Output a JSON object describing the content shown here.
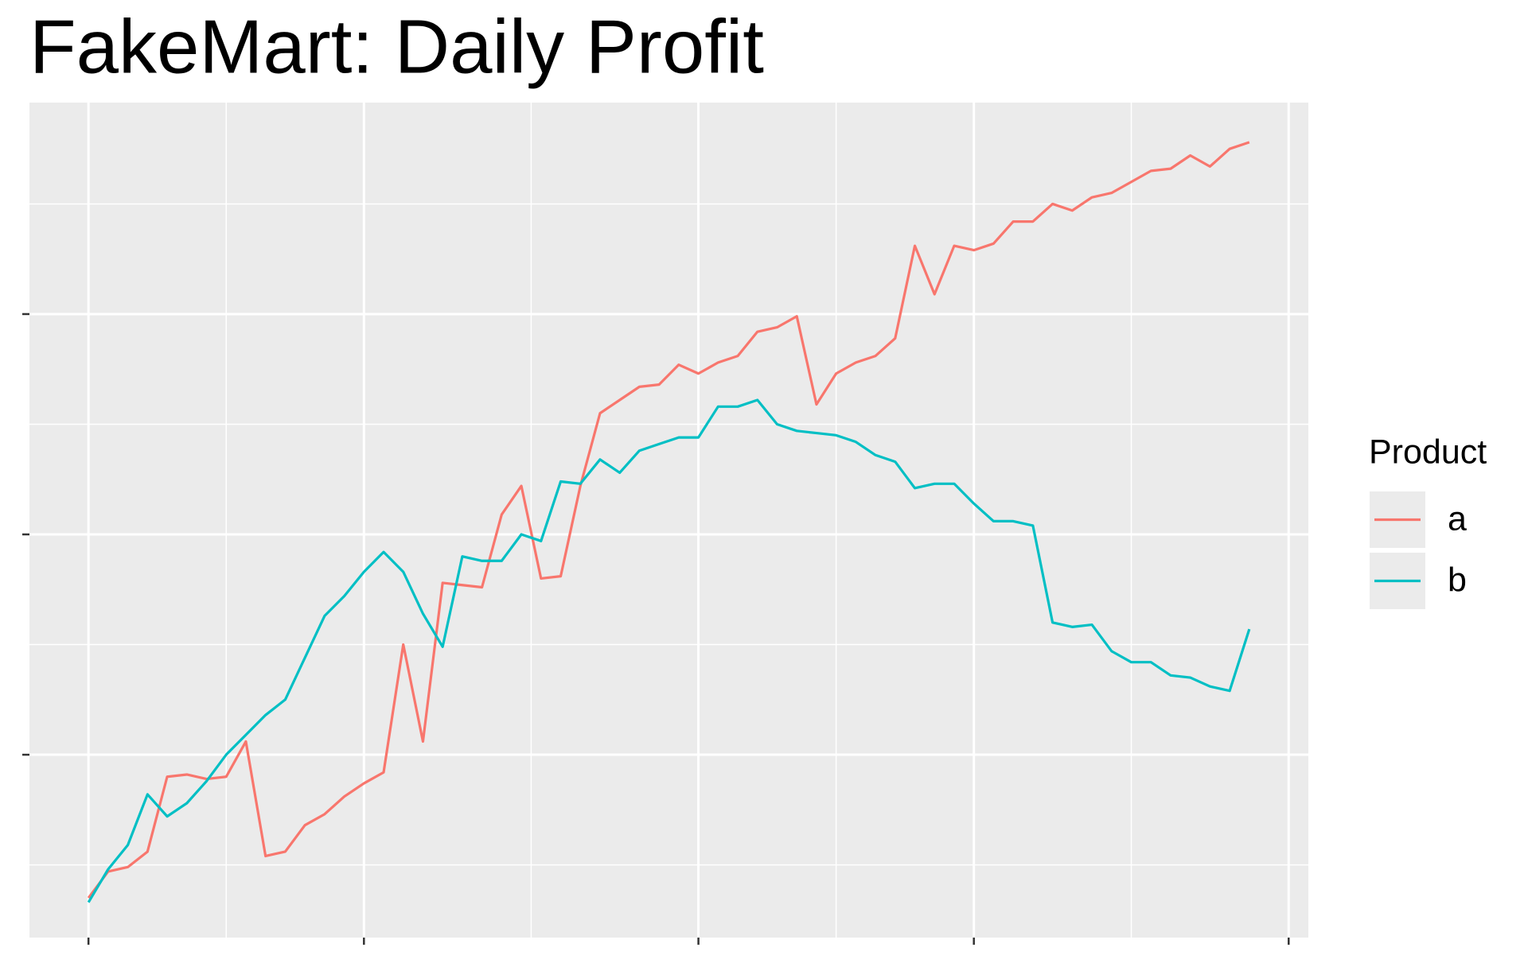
{
  "chart_data": {
    "type": "line",
    "title": "FakeMart: Daily Profit",
    "x": [
      0,
      1,
      2,
      3,
      4,
      5,
      6,
      7,
      8,
      9,
      10,
      11,
      12,
      13,
      14,
      15,
      16,
      17,
      18,
      19,
      20,
      21,
      22,
      23,
      24,
      25,
      26,
      27,
      28,
      29,
      30,
      31,
      32,
      33,
      34,
      35,
      36,
      37,
      38,
      39,
      40,
      41,
      42,
      43,
      44,
      45,
      46,
      47,
      48,
      49,
      50,
      51,
      52,
      53,
      54,
      55,
      56,
      57,
      58,
      59
    ],
    "series": [
      {
        "name": "a",
        "color": "#F8766D",
        "values": [
          0.35,
          0.47,
          0.49,
          0.56,
          0.9,
          0.91,
          0.89,
          0.9,
          1.06,
          0.54,
          0.56,
          0.68,
          0.73,
          0.81,
          0.87,
          0.92,
          1.5,
          1.06,
          1.78,
          1.77,
          1.76,
          2.09,
          2.22,
          1.8,
          1.81,
          2.22,
          2.55,
          2.61,
          2.67,
          2.68,
          2.77,
          2.73,
          2.78,
          2.81,
          2.92,
          2.94,
          2.99,
          2.59,
          2.73,
          2.78,
          2.81,
          2.89,
          3.31,
          3.09,
          3.31,
          3.29,
          3.32,
          3.42,
          3.42,
          3.5,
          3.47,
          3.53,
          3.55,
          3.6,
          3.65,
          3.66,
          3.72,
          3.67,
          3.75,
          3.78
        ]
      },
      {
        "name": "b",
        "color": "#00BFC4",
        "values": [
          0.33,
          0.48,
          0.59,
          0.82,
          0.72,
          0.78,
          0.88,
          1.0,
          1.09,
          1.18,
          1.25,
          1.44,
          1.63,
          1.72,
          1.83,
          1.92,
          1.83,
          1.64,
          1.49,
          1.9,
          1.88,
          1.88,
          2.0,
          1.97,
          2.24,
          2.23,
          2.34,
          2.28,
          2.38,
          2.41,
          2.44,
          2.44,
          2.58,
          2.58,
          2.61,
          2.5,
          2.47,
          2.46,
          2.45,
          2.42,
          2.36,
          2.33,
          2.21,
          2.23,
          2.23,
          2.14,
          2.06,
          2.06,
          2.04,
          1.6,
          1.58,
          1.59,
          1.47,
          1.42,
          1.42,
          1.36,
          1.35,
          1.31,
          1.29,
          1.57
        ]
      }
    ],
    "xlim": [
      -3,
      62
    ],
    "xticks": [
      0,
      14,
      31,
      45,
      61
    ],
    "ylim": [
      0.17,
      3.96
    ],
    "yticks": [
      1,
      2,
      3
    ],
    "grid": true,
    "legend_title": "Product",
    "legend": "right"
  }
}
